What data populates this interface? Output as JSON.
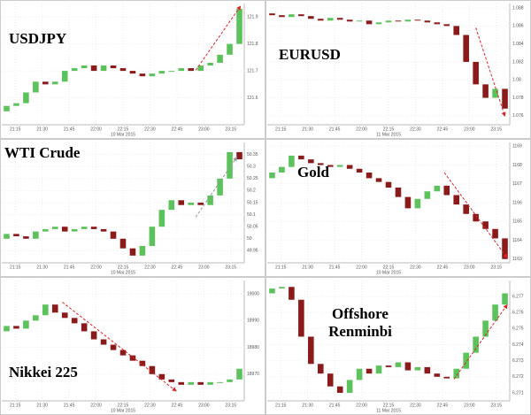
{
  "chart_data": [
    {
      "type": "candlestick",
      "title": "USDJPY",
      "date": "10 Mar 2015",
      "xlabels": [
        "21:15",
        "21:30",
        "21:45",
        "22:00",
        "22:15",
        "22:30",
        "22:45",
        "23:00",
        "23:15"
      ],
      "open": [
        121.55,
        121.57,
        121.58,
        121.62,
        121.66,
        121.65,
        121.66,
        121.7,
        121.71,
        121.72,
        121.7,
        121.72,
        121.71,
        121.7,
        121.69,
        121.68,
        121.69,
        121.7,
        121.7,
        121.71,
        121.7,
        121.72,
        121.73,
        121.76,
        121.8
      ],
      "close": [
        121.57,
        121.58,
        121.62,
        121.66,
        121.65,
        121.66,
        121.7,
        121.71,
        121.72,
        121.7,
        121.72,
        121.71,
        121.7,
        121.69,
        121.68,
        121.69,
        121.7,
        121.7,
        121.71,
        121.7,
        121.72,
        121.73,
        121.76,
        121.8,
        121.93
      ],
      "ylim": [
        121.5,
        121.95
      ],
      "yticks": [
        121.6,
        121.7,
        121.8,
        121.9
      ],
      "up_color": "#5cc35c",
      "down_color": "#8b1a1a"
    },
    {
      "type": "candlestick",
      "title": "EURUSD",
      "date": "11 Mar 2015",
      "xlabels": [
        "21:15",
        "21:30",
        "21:45",
        "22:00",
        "22:15",
        "22:30",
        "22:45",
        "23:00",
        "23:15"
      ],
      "open": [
        1.0874,
        1.0872,
        1.087,
        1.0873,
        1.0871,
        1.0868,
        1.0866,
        1.0869,
        1.0867,
        1.0865,
        1.0866,
        1.0862,
        1.0864,
        1.0866,
        1.0865,
        1.0867,
        1.0866,
        1.0864,
        1.0862,
        1.086,
        1.085,
        1.082,
        1.0795,
        1.078,
        1.079
      ],
      "close": [
        1.0872,
        1.087,
        1.0873,
        1.0871,
        1.0868,
        1.0866,
        1.0869,
        1.0867,
        1.0865,
        1.0866,
        1.0862,
        1.0864,
        1.0866,
        1.0865,
        1.0867,
        1.0866,
        1.0864,
        1.0862,
        1.086,
        1.085,
        1.082,
        1.0795,
        1.078,
        1.079,
        1.0768
      ],
      "ylim": [
        1.075,
        1.0885
      ],
      "yticks": [
        1.076,
        1.078,
        1.08,
        1.082,
        1.084,
        1.086,
        1.088
      ],
      "up_color": "#5cc35c",
      "down_color": "#8b1a1a"
    },
    {
      "type": "candlestick",
      "title": "WTI Crude",
      "date": "10 Mar 2015",
      "xlabels": [
        "21:15",
        "21:30",
        "21:45",
        "22:00",
        "22:15",
        "22:30",
        "22:45",
        "23:00",
        "23:15"
      ],
      "open": [
        50.0,
        50.02,
        50.01,
        50.0,
        50.03,
        50.04,
        50.05,
        50.03,
        50.04,
        50.05,
        50.04,
        50.03,
        50.0,
        49.96,
        49.93,
        49.97,
        50.05,
        50.12,
        50.16,
        50.14,
        50.15,
        50.14,
        50.18,
        50.25,
        50.36
      ],
      "close": [
        50.02,
        50.01,
        50.0,
        50.03,
        50.04,
        50.05,
        50.03,
        50.04,
        50.05,
        50.04,
        50.03,
        50.0,
        49.96,
        49.93,
        49.97,
        50.05,
        50.12,
        50.16,
        50.14,
        50.15,
        50.14,
        50.18,
        50.25,
        50.36,
        50.33
      ],
      "ylim": [
        49.9,
        50.4
      ],
      "yticks": [
        49.95,
        50,
        50.05,
        50.1,
        50.15,
        50.2,
        50.25,
        50.3,
        50.35
      ],
      "up_color": "#5cc35c",
      "down_color": "#8b1a1a"
    },
    {
      "type": "candlestick",
      "title": "Gold",
      "date": "10 Mar 2015",
      "xlabels": [
        "21:15",
        "21:30",
        "21:45",
        "22:00",
        "22:15",
        "22:30",
        "22:45",
        "23:00",
        "23:15"
      ],
      "open": [
        1167.3,
        1167.6,
        1167.9,
        1168.5,
        1168.3,
        1168.1,
        1168.0,
        1167.9,
        1168.0,
        1167.8,
        1167.6,
        1167.3,
        1167.1,
        1166.8,
        1166.3,
        1165.7,
        1166.2,
        1166.6,
        1166.9,
        1166.4,
        1165.9,
        1165.4,
        1165.0,
        1164.6,
        1164.1
      ],
      "close": [
        1167.6,
        1167.9,
        1168.5,
        1168.3,
        1168.1,
        1168.0,
        1167.9,
        1168.0,
        1167.8,
        1167.6,
        1167.3,
        1167.1,
        1166.8,
        1166.3,
        1165.7,
        1166.2,
        1166.6,
        1166.9,
        1166.4,
        1165.9,
        1165.4,
        1165.0,
        1164.6,
        1164.1,
        1163.0
      ],
      "ylim": [
        1162.8,
        1169.2
      ],
      "yticks": [
        1163,
        1164,
        1165,
        1166,
        1167,
        1168,
        1169
      ],
      "up_color": "#5cc35c",
      "down_color": "#8b1a1a"
    },
    {
      "type": "candlestick",
      "title": "Nikkei 225",
      "date": "10 Mar 2015",
      "xlabels": [
        "21:15",
        "21:30",
        "21:45",
        "22:00",
        "22:15",
        "22:30",
        "22:45",
        "23:00",
        "23:15"
      ],
      "open": [
        18986,
        18988,
        18987,
        18990,
        18992,
        18996,
        18993,
        18991,
        18989,
        18986,
        18983,
        18981,
        18979,
        18977,
        18975,
        18973,
        18970,
        18968,
        18967,
        18966,
        18967,
        18966,
        18967,
        18967,
        18968
      ],
      "close": [
        18988,
        18987,
        18990,
        18992,
        18996,
        18993,
        18991,
        18989,
        18986,
        18983,
        18981,
        18979,
        18977,
        18975,
        18973,
        18970,
        18968,
        18967,
        18966,
        18967,
        18966,
        18967,
        18967,
        18968,
        18972
      ],
      "ylim": [
        18960,
        19005
      ],
      "yticks": [
        18970,
        18980,
        18990,
        19000
      ],
      "up_color": "#5cc35c",
      "down_color": "#8b1a1a"
    },
    {
      "type": "candlestick",
      "title": "Offshore Renminbi",
      "date": "11 Mar 2015",
      "xlabels": [
        "21:15",
        "21:30",
        "21:45",
        "22:00",
        "22:15",
        "22:30",
        "22:45",
        "23:00",
        "23:15"
      ],
      "open": [
        6.2772,
        6.2775,
        6.2776,
        6.2768,
        6.2745,
        6.2728,
        6.2722,
        6.2714,
        6.271,
        6.2718,
        6.2725,
        6.2722,
        6.2727,
        6.2726,
        6.2729,
        6.2724,
        6.2726,
        6.2722,
        6.272,
        6.2719,
        6.2725,
        6.2735,
        6.2745,
        6.2755,
        6.2765
      ],
      "close": [
        6.2775,
        6.2776,
        6.2768,
        6.2745,
        6.2728,
        6.2722,
        6.2714,
        6.271,
        6.2718,
        6.2725,
        6.2722,
        6.2727,
        6.2726,
        6.2729,
        6.2724,
        6.2726,
        6.2722,
        6.272,
        6.2719,
        6.2725,
        6.2735,
        6.2745,
        6.2755,
        6.2765,
        6.2772
      ],
      "ylim": [
        6.2705,
        6.278
      ],
      "yticks": [
        6.271,
        6.272,
        6.273,
        6.274,
        6.275,
        6.276,
        6.277
      ],
      "up_color": "#5cc35c",
      "down_color": "#8b1a1a"
    }
  ]
}
